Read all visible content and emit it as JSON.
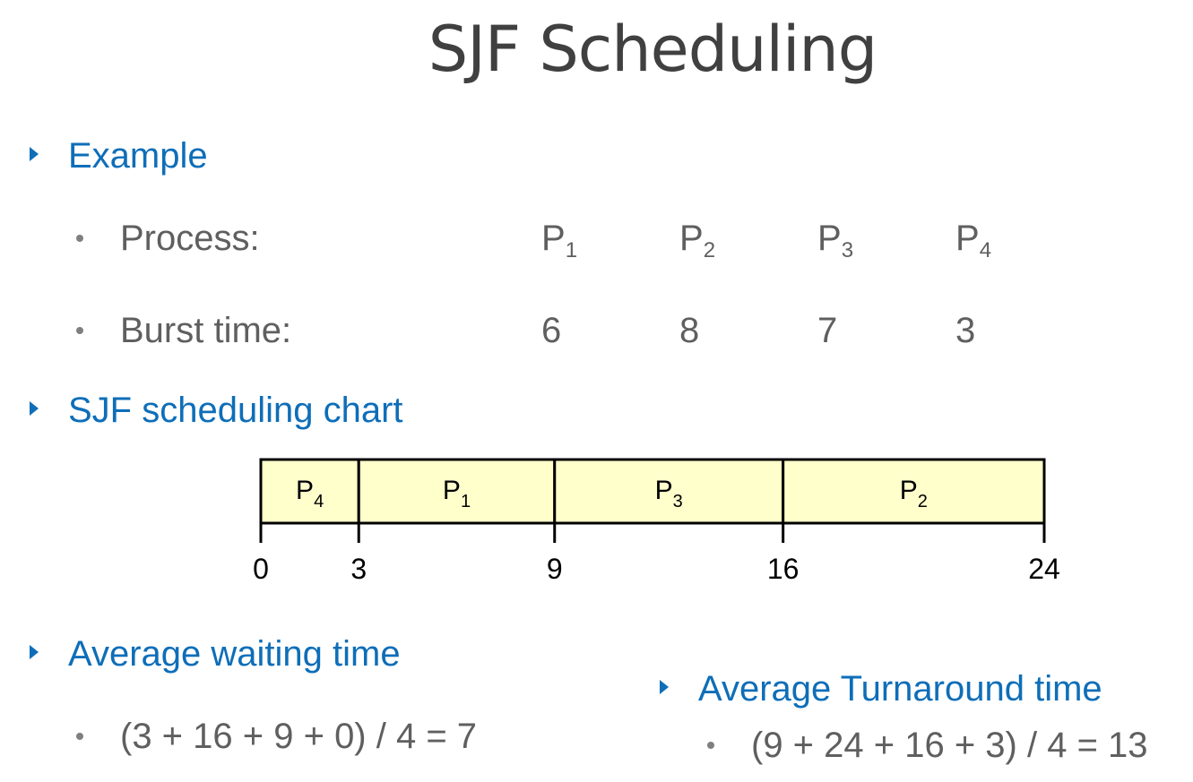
{
  "title": "SJF Scheduling",
  "sections": {
    "example": "Example",
    "chart": "SJF scheduling chart",
    "avg_wait": "Average waiting time",
    "avg_turnaround": "Average Turnaround time"
  },
  "process_row": {
    "label": "Process:",
    "cells": [
      {
        "name": "P",
        "sub": "1"
      },
      {
        "name": "P",
        "sub": "2"
      },
      {
        "name": "P",
        "sub": "3"
      },
      {
        "name": "P",
        "sub": "4"
      }
    ]
  },
  "burst_row": {
    "label": "Burst time:",
    "values": [
      "6",
      "8",
      "7",
      "3"
    ]
  },
  "gantt": {
    "blocks": [
      {
        "name": "P",
        "sub": "4",
        "start": 0,
        "end": 3
      },
      {
        "name": "P",
        "sub": "1",
        "start": 3,
        "end": 9
      },
      {
        "name": "P",
        "sub": "3",
        "start": 9,
        "end": 16
      },
      {
        "name": "P",
        "sub": "2",
        "start": 16,
        "end": 24
      }
    ],
    "ticks": [
      "0",
      "3",
      "9",
      "16",
      "24"
    ],
    "fill_color": "#ffffcc",
    "border_color": "#000000"
  },
  "avg_wait_formula": "(3 + 16 + 9 + 0) / 4 = 7",
  "avg_turnaround_formula": "(9 + 24 + 16 + 3) / 4 = 13"
}
